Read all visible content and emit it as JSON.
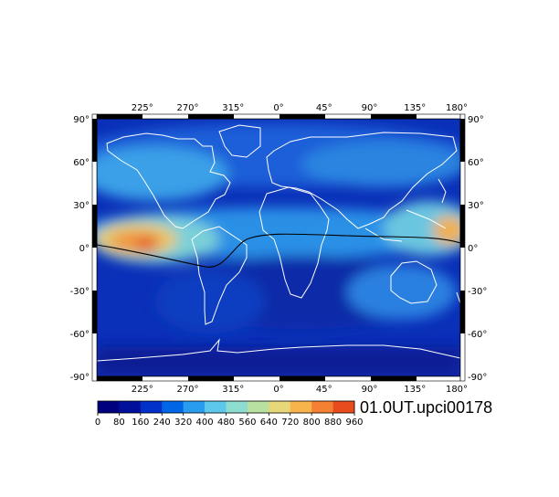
{
  "map": {
    "title": "01.0UT.upci00178",
    "top_lon_labels": [
      "225°",
      "270°",
      "315°",
      "0°",
      "45°",
      "90°",
      "135°",
      "180°"
    ],
    "bottom_lon_labels": [
      "225°",
      "270°",
      "315°",
      "0°",
      "45°",
      "90°",
      "135°",
      "180°"
    ],
    "left_lat_labels": [
      "90°",
      "60°",
      "30°",
      "0°",
      "-30°",
      "-60°",
      "-90°"
    ],
    "right_lat_labels": [
      "90°",
      "60°",
      "30°",
      "0°",
      "-30°",
      "-60°",
      "-90°"
    ],
    "lon_range": [
      180,
      540
    ],
    "lat_range": [
      -90,
      90
    ],
    "coastline_color": "#ffffff",
    "equator_line_color": "#000000"
  },
  "colorbar": {
    "tick_labels": [
      "0",
      "80",
      "160",
      "240",
      "320",
      "400",
      "480",
      "560",
      "640",
      "720",
      "800",
      "880",
      "960"
    ],
    "colors": [
      "#00007f",
      "#00109a",
      "#0030c8",
      "#0066e8",
      "#2a9cf0",
      "#5ec8ec",
      "#8cdcd0",
      "#b8e0a0",
      "#e6d878",
      "#f8b44c",
      "#f48034",
      "#e84c1c"
    ],
    "range": [
      0,
      960
    ]
  }
}
